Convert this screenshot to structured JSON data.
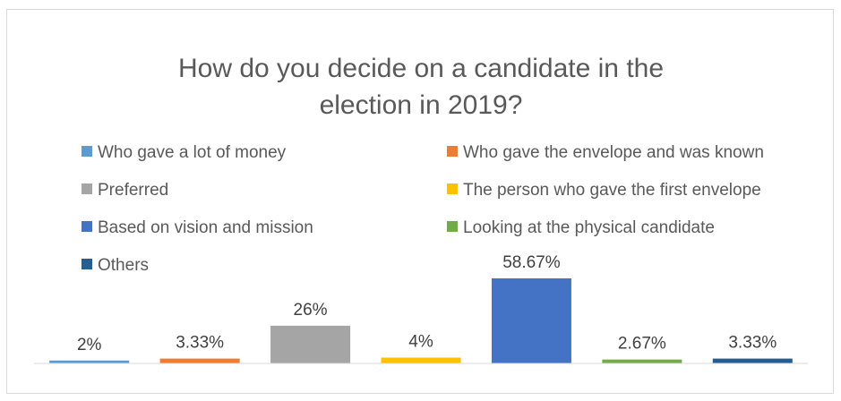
{
  "chart_data": {
    "type": "bar",
    "title_lines": [
      "How do you decide on a candidate in the",
      "election in 2019?"
    ],
    "categories": [
      "Who gave a lot of money",
      "Who gave the envelope and was known",
      "Preferred",
      "The person who gave the first envelope",
      "Based on vision and mission",
      "Looking at the physical candidate",
      "Others"
    ],
    "values": [
      2,
      3.33,
      26,
      4,
      58.67,
      2.67,
      3.33
    ],
    "data_labels": [
      "2%",
      "3.33%",
      "26%",
      "4%",
      "58.67%",
      "2.67%",
      "3.33%"
    ],
    "colors": [
      "#5b9bd5",
      "#ed7d31",
      "#a5a5a5",
      "#ffc000",
      "#4472c4",
      "#70ad47",
      "#255e91"
    ],
    "legend_position": "top",
    "grid": false,
    "xlabel": "",
    "ylabel": "",
    "ylim": [
      0,
      58.67
    ]
  }
}
